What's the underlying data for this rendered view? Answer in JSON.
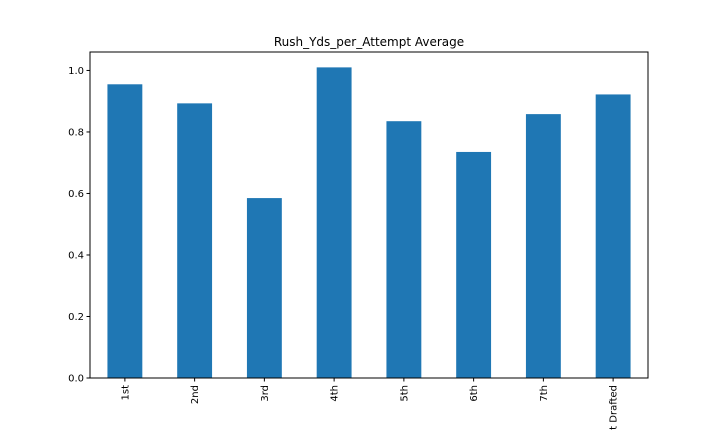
{
  "chart_data": {
    "type": "bar",
    "title": "Rush_Yds_per_Attempt Average",
    "xlabel": "",
    "ylabel": "",
    "categories": [
      "1st",
      "2nd",
      "3rd",
      "4th",
      "5th",
      "6th",
      "7th",
      "t Drafted"
    ],
    "values": [
      0.955,
      0.893,
      0.585,
      1.01,
      0.835,
      0.735,
      0.858,
      0.922
    ],
    "ylim": [
      0,
      1.06
    ],
    "yticks": [
      0.0,
      0.2,
      0.4,
      0.6,
      0.8,
      1.0
    ],
    "ytick_labels": [
      "0.0",
      "0.2",
      "0.4",
      "0.6",
      "0.8",
      "1.0"
    ],
    "grid": false,
    "legend": "none",
    "bar_color": "#1f77b4"
  }
}
